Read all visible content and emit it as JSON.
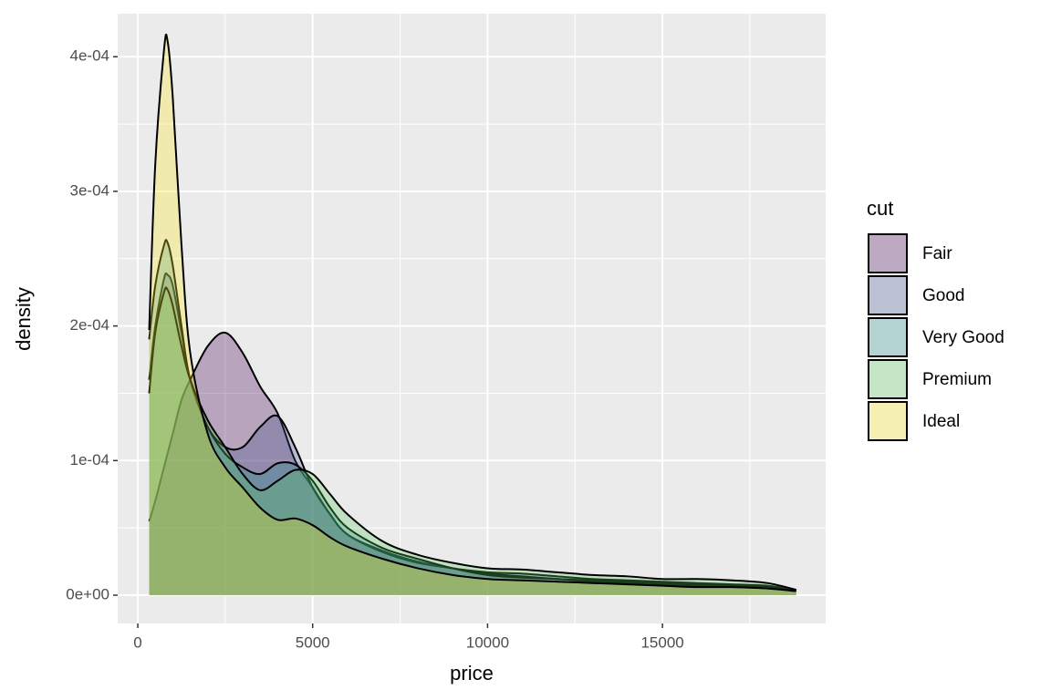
{
  "chart_data": {
    "type": "density",
    "x_label": "price",
    "y_label": "density",
    "legend_title": "cut",
    "legend_position": "right",
    "x": [
      326,
      500,
      750,
      850,
      1000,
      1250,
      1500,
      2000,
      2500,
      3000,
      3500,
      4000,
      4500,
      5000,
      5500,
      6000,
      7000,
      8000,
      9000,
      10000,
      11000,
      12000,
      13000,
      14000,
      15000,
      16000,
      17000,
      18000,
      18823
    ],
    "fill_opacity": 0.3,
    "series": [
      {
        "name": "Fair",
        "color": "#440154",
        "values": [
          5.5e-05,
          7e-05,
          9.5e-05,
          0.000105,
          0.00012,
          0.000145,
          0.00016,
          0.000185,
          0.000195,
          0.00018,
          0.000155,
          0.000135,
          0.0001,
          8e-05,
          6e-05,
          4.5e-05,
          3.3e-05,
          2.5e-05,
          2e-05,
          1.7e-05,
          1.6e-05,
          1.4e-05,
          1.2e-05,
          1.1e-05,
          1e-05,
          9e-06,
          8e-06,
          7e-06,
          4e-06
        ]
      },
      {
        "name": "Good",
        "color": "#3b528b",
        "values": [
          0.00016,
          0.0002,
          0.000235,
          0.000238,
          0.00023,
          0.000195,
          0.00016,
          0.000125,
          0.00011,
          0.00011,
          0.000125,
          0.000133,
          0.00011,
          8e-05,
          6e-05,
          4.5e-05,
          3.2e-05,
          2.4e-05,
          2e-05,
          1.6e-05,
          1.4e-05,
          1.2e-05,
          1.1e-05,
          1e-05,
          9e-06,
          8e-06,
          7e-06,
          6e-06,
          4e-06
        ]
      },
      {
        "name": "Very Good",
        "color": "#21908c",
        "values": [
          0.00019,
          0.00023,
          0.00026,
          0.000262,
          0.000245,
          0.0002,
          0.00016,
          0.000125,
          0.000105,
          9.5e-05,
          9e-05,
          9.8e-05,
          9.7e-05,
          8.5e-05,
          6.5e-05,
          5e-05,
          3.5e-05,
          2.7e-05,
          2e-05,
          1.5e-05,
          1.3e-05,
          1.2e-05,
          1e-05,
          9e-06,
          8e-06,
          7e-06,
          6e-06,
          5e-06,
          3e-06
        ]
      },
      {
        "name": "Premium",
        "color": "#5dc863",
        "values": [
          0.00015,
          0.000195,
          0.000225,
          0.000227,
          0.000215,
          0.000185,
          0.00016,
          0.00013,
          0.00011,
          9e-05,
          7.8e-05,
          8.5e-05,
          9.3e-05,
          9e-05,
          7.5e-05,
          6e-05,
          4e-05,
          3e-05,
          2.4e-05,
          2e-05,
          1.9e-05,
          1.7e-05,
          1.5e-05,
          1.4e-05,
          1.2e-05,
          1.2e-05,
          1.1e-05,
          9e-06,
          4e-06
        ]
      },
      {
        "name": "Ideal",
        "color": "#fde725",
        "values": [
          0.000197,
          0.00032,
          0.000405,
          0.000412,
          0.00037,
          0.00026,
          0.00018,
          0.00012,
          9.5e-05,
          8e-05,
          6.5e-05,
          5.6e-05,
          5.7e-05,
          5.2e-05,
          4.3e-05,
          3.6e-05,
          2.7e-05,
          2e-05,
          1.5e-05,
          1.2e-05,
          1.1e-05,
          1e-05,
          9e-06,
          8e-06,
          7e-06,
          6e-06,
          6e-06,
          5e-06,
          3e-06
        ]
      }
    ],
    "xlim": [
      -574,
      19666
    ],
    "xticks": [
      0,
      5000,
      10000,
      15000
    ],
    "ylim": [
      -2.1e-05,
      0.000432
    ],
    "yticks": [
      {
        "value": 0,
        "label": "0e+00"
      },
      {
        "value": 0.0001,
        "label": "1e-04"
      },
      {
        "value": 0.0002,
        "label": "2e-04"
      },
      {
        "value": 0.0003,
        "label": "3e-04"
      },
      {
        "value": 0.0004,
        "label": "4e-04"
      }
    ],
    "grid": true
  }
}
